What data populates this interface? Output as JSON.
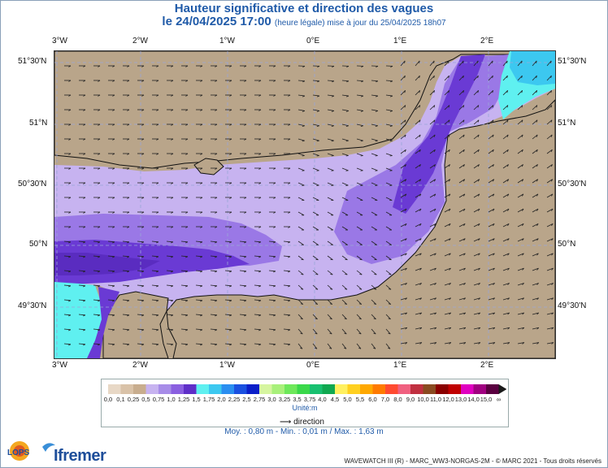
{
  "title": "Hauteur significative et direction des vagues",
  "subtitle_main": "le 24/04/2025 17:00",
  "subtitle_small": "(heure légale) mise à jour du 25/04/2025 18h07",
  "lon_labels": [
    "3°W",
    "2°W",
    "1°W",
    "0°E",
    "1°E",
    "2°E"
  ],
  "lat_labels": [
    "51°30'N",
    "51°N",
    "50°30'N",
    "50°N",
    "49°30'N"
  ],
  "legend": {
    "labels": [
      "0,0",
      "0,1",
      "0,25",
      "0,5",
      "0,75",
      "1,0",
      "1,25",
      "1,5",
      "1,75",
      "2,0",
      "2,25",
      "2,5",
      "2,75",
      "3,0",
      "3,25",
      "3,5",
      "3,75",
      "4,0",
      "4,5",
      "5,0",
      "5,5",
      "6,0",
      "7,0",
      "8,0",
      "9,0",
      "10,0",
      "11,0",
      "12,0",
      "13,0",
      "14,0",
      "15,0",
      "∞"
    ],
    "colors": [
      "#e8d8c6",
      "#d9c2a8",
      "#c8ad8e",
      "#c7b3f0",
      "#a78ce8",
      "#8a5fe0",
      "#5f2fc8",
      "#5ff0f0",
      "#3cc8f0",
      "#2a8ef0",
      "#1a50e0",
      "#0a1ec8",
      "#d6f5a0",
      "#a8f07a",
      "#6ee85a",
      "#3ad84a",
      "#18c070",
      "#10a850",
      "#fff060",
      "#ffd020",
      "#ffa800",
      "#ff7a00",
      "#ff4a30",
      "#f06080",
      "#c03040",
      "#8a4a20",
      "#8a0000",
      "#c00000",
      "#e000c0",
      "#a00080",
      "#5a0040"
    ],
    "unit": "Unité:m"
  },
  "direction_label": "direction",
  "stats": "Moy. : 0,80 m   -   Min. : 0,01 m / Max. : 1,63 m",
  "copyright": "WAVEWATCH III (R) - MARC_WW3-NORGAS-2M - © MARC 2021 - Tous droits réservés",
  "logo_lops": "LOPS",
  "logo_ifremer": "Ifremer",
  "colors": {
    "land": "#b9a58a",
    "light_purple": "#c7b3f0",
    "mid_purple": "#9a78e6",
    "dark_purple": "#6a3ad4",
    "deep_purple": "#5a2cc0",
    "cyan": "#5ff0f0",
    "title_blue": "#1f5aa8"
  }
}
